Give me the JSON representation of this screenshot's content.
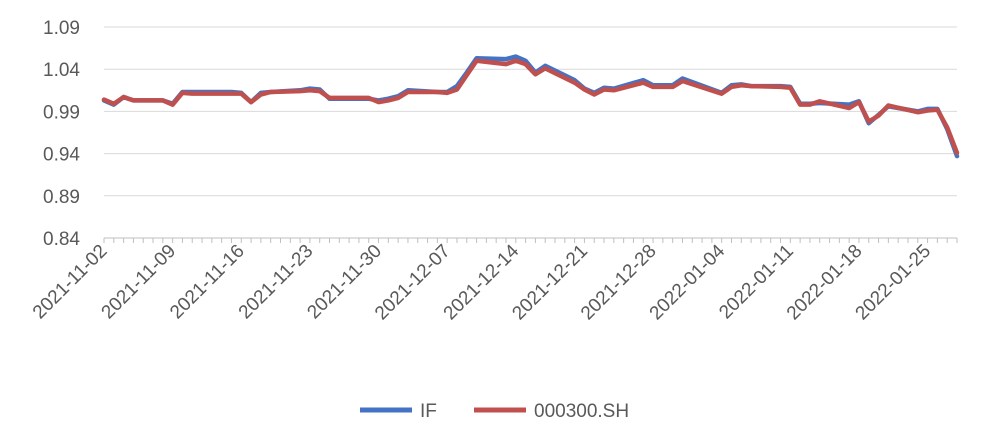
{
  "chart_data": {
    "type": "line",
    "title": "",
    "xlabel": "",
    "ylabel": "",
    "ylim": [
      0.84,
      1.09
    ],
    "yticks": [
      "1.09",
      "1.04",
      "0.99",
      "0.94",
      "0.89",
      "0.84"
    ],
    "xtick_labels": [
      "2021-11-02",
      "2021-11-09",
      "2021-11-16",
      "2021-11-23",
      "2021-11-30",
      "2021-12-07",
      "2021-12-14",
      "2021-12-21",
      "2021-12-28",
      "2022-01-04",
      "2022-01-11",
      "2022-01-18",
      "2022-01-25"
    ],
    "grid": "horizontal",
    "legend": "bottom",
    "x": [
      "2021-11-02",
      "2021-11-03",
      "2021-11-04",
      "2021-11-05",
      "2021-11-08",
      "2021-11-09",
      "2021-11-10",
      "2021-11-11",
      "2021-11-12",
      "2021-11-15",
      "2021-11-16",
      "2021-11-17",
      "2021-11-18",
      "2021-11-19",
      "2021-11-22",
      "2021-11-23",
      "2021-11-24",
      "2021-11-25",
      "2021-11-26",
      "2021-11-29",
      "2021-11-30",
      "2021-12-01",
      "2021-12-02",
      "2021-12-03",
      "2021-12-06",
      "2021-12-07",
      "2021-12-08",
      "2021-12-09",
      "2021-12-10",
      "2021-12-13",
      "2021-12-14",
      "2021-12-15",
      "2021-12-16",
      "2021-12-17",
      "2021-12-20",
      "2021-12-21",
      "2021-12-22",
      "2021-12-23",
      "2021-12-24",
      "2021-12-27",
      "2021-12-28",
      "2021-12-29",
      "2021-12-30",
      "2021-12-31",
      "2022-01-04",
      "2022-01-05",
      "2022-01-06",
      "2022-01-07",
      "2022-01-10",
      "2022-01-11",
      "2022-01-12",
      "2022-01-13",
      "2022-01-14",
      "2022-01-17",
      "2022-01-18",
      "2022-01-19",
      "2022-01-20",
      "2022-01-21",
      "2022-01-24",
      "2022-01-25",
      "2022-01-26",
      "2022-01-27",
      "2022-01-28"
    ],
    "series": [
      {
        "name": "IF",
        "color": "#4472C4",
        "values": [
          1.003,
          0.998,
          1.007,
          1.003,
          1.003,
          0.999,
          1.013,
          1.013,
          1.013,
          1.013,
          1.012,
          1.001,
          1.012,
          1.013,
          1.015,
          1.017,
          1.016,
          1.005,
          1.005,
          1.005,
          1.003,
          1.005,
          1.008,
          1.015,
          1.013,
          1.013,
          1.02,
          1.036,
          1.053,
          1.052,
          1.055,
          1.05,
          1.036,
          1.044,
          1.027,
          1.017,
          1.012,
          1.018,
          1.017,
          1.027,
          1.021,
          1.021,
          1.021,
          1.029,
          1.012,
          1.021,
          1.022,
          1.02,
          1.02,
          1.019,
          0.999,
          0.999,
          1.0,
          0.998,
          1.002,
          0.976,
          0.986,
          0.996,
          0.99,
          0.993,
          0.993,
          0.969,
          0.937
        ]
      },
      {
        "name": "000300.SH",
        "color": "#C0504D",
        "values": [
          1.004,
          0.999,
          1.007,
          1.003,
          1.003,
          0.998,
          1.012,
          1.011,
          1.011,
          1.011,
          1.011,
          1.001,
          1.01,
          1.013,
          1.014,
          1.015,
          1.014,
          1.006,
          1.006,
          1.006,
          1.001,
          1.003,
          1.006,
          1.013,
          1.013,
          1.012,
          1.016,
          1.033,
          1.05,
          1.046,
          1.05,
          1.046,
          1.034,
          1.041,
          1.024,
          1.016,
          1.01,
          1.016,
          1.015,
          1.024,
          1.019,
          1.019,
          1.019,
          1.026,
          1.011,
          1.019,
          1.021,
          1.02,
          1.019,
          1.018,
          0.998,
          0.998,
          1.002,
          0.994,
          1.001,
          0.978,
          0.985,
          0.997,
          0.989,
          0.991,
          0.992,
          0.971,
          0.941
        ]
      }
    ]
  }
}
